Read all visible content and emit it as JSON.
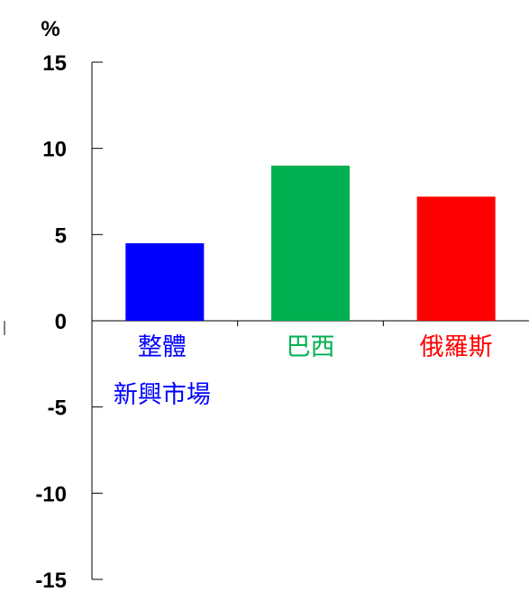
{
  "chart_data": {
    "type": "bar",
    "unit_label": "%",
    "ylim": [
      -15,
      15
    ],
    "yticks": [
      15,
      10,
      5,
      0,
      -5,
      -10,
      -15
    ],
    "categories": [
      {
        "lines": [
          "整體",
          "新興市場"
        ],
        "color": "#0000FF"
      },
      {
        "lines": [
          "巴西"
        ],
        "color": "#00B050"
      },
      {
        "lines": [
          "俄羅斯"
        ],
        "color": "#FF0000"
      }
    ],
    "values": [
      4.5,
      9.0,
      7.2
    ],
    "grid": false,
    "legend": "none"
  }
}
